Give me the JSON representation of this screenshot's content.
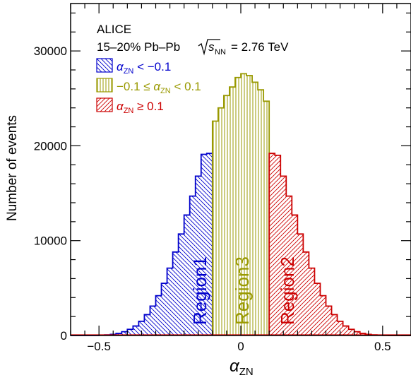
{
  "chart_data": {
    "type": "bar",
    "subtype": "histogram",
    "xlabel": "α_ZN",
    "ylabel": "Number of events",
    "xlim": [
      -0.6,
      0.6
    ],
    "ylim": [
      0,
      35000
    ],
    "x_ticks": [
      "−0.5",
      "0",
      "0.5"
    ],
    "x_tick_values": [
      -0.5,
      0,
      0.5
    ],
    "y_ticks": [
      "0",
      "10000",
      "20000",
      "30000"
    ],
    "y_tick_values": [
      0,
      10000,
      20000,
      30000
    ],
    "bin_width": 0.02,
    "bins": [
      {
        "x": -0.6,
        "y": 0
      },
      {
        "x": -0.58,
        "y": 0
      },
      {
        "x": -0.56,
        "y": 0
      },
      {
        "x": -0.54,
        "y": 0
      },
      {
        "x": -0.52,
        "y": 0
      },
      {
        "x": -0.5,
        "y": 30
      },
      {
        "x": -0.48,
        "y": 60
      },
      {
        "x": -0.46,
        "y": 120
      },
      {
        "x": -0.44,
        "y": 220
      },
      {
        "x": -0.42,
        "y": 400
      },
      {
        "x": -0.4,
        "y": 650
      },
      {
        "x": -0.38,
        "y": 1000
      },
      {
        "x": -0.36,
        "y": 1500
      },
      {
        "x": -0.34,
        "y": 2200
      },
      {
        "x": -0.32,
        "y": 3100
      },
      {
        "x": -0.3,
        "y": 4200
      },
      {
        "x": -0.28,
        "y": 5500
      },
      {
        "x": -0.26,
        "y": 7100
      },
      {
        "x": -0.24,
        "y": 8800
      },
      {
        "x": -0.22,
        "y": 10700
      },
      {
        "x": -0.2,
        "y": 12700
      },
      {
        "x": -0.18,
        "y": 14700
      },
      {
        "x": -0.16,
        "y": 16800
      },
      {
        "x": -0.14,
        "y": 19100
      },
      {
        "x": -0.12,
        "y": 19200
      },
      {
        "x": -0.1,
        "y": 22600
      },
      {
        "x": -0.08,
        "y": 24000
      },
      {
        "x": -0.06,
        "y": 25300
      },
      {
        "x": -0.04,
        "y": 26200
      },
      {
        "x": -0.02,
        "y": 27200
      },
      {
        "x": 0.0,
        "y": 27600
      },
      {
        "x": 0.02,
        "y": 27400
      },
      {
        "x": 0.04,
        "y": 26700
      },
      {
        "x": 0.06,
        "y": 25900
      },
      {
        "x": 0.08,
        "y": 24700
      },
      {
        "x": 0.1,
        "y": 19200
      },
      {
        "x": 0.12,
        "y": 19000
      },
      {
        "x": 0.14,
        "y": 16800
      },
      {
        "x": 0.16,
        "y": 14700
      },
      {
        "x": 0.18,
        "y": 12700
      },
      {
        "x": 0.2,
        "y": 10700
      },
      {
        "x": 0.22,
        "y": 8800
      },
      {
        "x": 0.24,
        "y": 7100
      },
      {
        "x": 0.26,
        "y": 5500
      },
      {
        "x": 0.28,
        "y": 4200
      },
      {
        "x": 0.3,
        "y": 3100
      },
      {
        "x": 0.32,
        "y": 2200
      },
      {
        "x": 0.34,
        "y": 1500
      },
      {
        "x": 0.36,
        "y": 1000
      },
      {
        "x": 0.38,
        "y": 650
      },
      {
        "x": 0.4,
        "y": 400
      },
      {
        "x": 0.42,
        "y": 220
      },
      {
        "x": 0.44,
        "y": 120
      },
      {
        "x": 0.46,
        "y": 60
      },
      {
        "x": 0.48,
        "y": 30
      },
      {
        "x": 0.5,
        "y": 15
      },
      {
        "x": 0.52,
        "y": 0
      },
      {
        "x": 0.54,
        "y": 0
      },
      {
        "x": 0.56,
        "y": 0
      },
      {
        "x": 0.58,
        "y": 0
      }
    ],
    "regions": [
      {
        "name": "Region1",
        "label": "Region1",
        "range": [
          -0.6,
          -0.1
        ],
        "color": "#0000cc",
        "fill": "hatch-backslash"
      },
      {
        "name": "Region3",
        "label": "Region3",
        "range": [
          -0.1,
          0.1
        ],
        "color": "#999900",
        "fill": "hatch-vertical"
      },
      {
        "name": "Region2",
        "label": "Region2",
        "range": [
          0.1,
          0.6
        ],
        "color": "#cc0000",
        "fill": "hatch-slash"
      }
    ],
    "text_lines": [
      "ALICE",
      "15–20% Pb–Pb",
      "= 2.76 TeV"
    ],
    "legend": [
      {
        "label": "α_ZN < −0.1",
        "color": "#0000cc",
        "fill": "hatch-backslash"
      },
      {
        "label": "−0.1 ≤ α_ZN < 0.1",
        "color": "#999900",
        "fill": "hatch-vertical"
      },
      {
        "label": "α_ZN ≥ 0.1",
        "color": "#cc0000",
        "fill": "hatch-slash"
      }
    ],
    "legend_placement": "top-left",
    "grid": false
  }
}
